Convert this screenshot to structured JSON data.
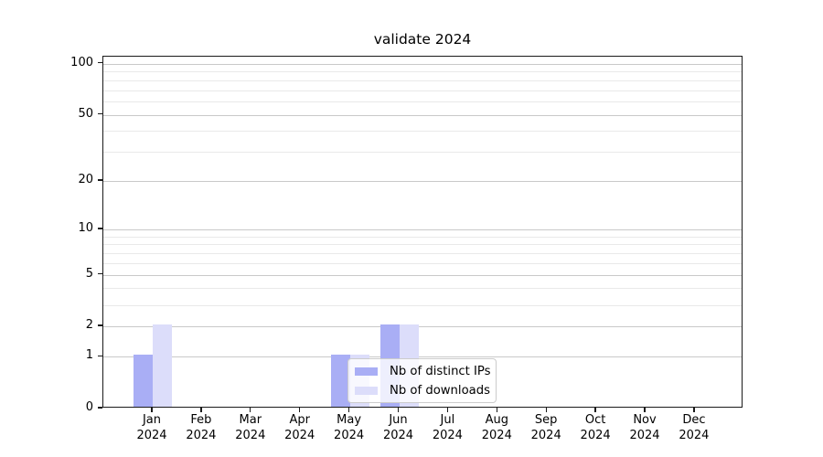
{
  "title": "validate 2024",
  "legend": {
    "items": [
      {
        "label": "Nb of distinct IPs",
        "color": "#a9aef5"
      },
      {
        "label": "Nb of downloads",
        "color": "#dcddfa"
      }
    ]
  },
  "chart_data": {
    "type": "bar",
    "title": "validate 2024",
    "categories": [
      "Jan",
      "Feb",
      "Mar",
      "Apr",
      "May",
      "Jun",
      "Jul",
      "Aug",
      "Sep",
      "Oct",
      "Nov",
      "Dec"
    ],
    "x_year_label": "2024",
    "series": [
      {
        "name": "Nb of distinct IPs",
        "color": "#a9aef5",
        "values": [
          1,
          0,
          0,
          0,
          1,
          2,
          0,
          0,
          0,
          0,
          0,
          0
        ]
      },
      {
        "name": "Nb of downloads",
        "color": "#dcddfa",
        "values": [
          2,
          0,
          0,
          0,
          1,
          2,
          0,
          0,
          0,
          0,
          0,
          0
        ]
      }
    ],
    "xlabel": "",
    "ylabel": "",
    "y_scale": "log1p",
    "ylim": [
      0,
      110
    ],
    "y_ticks_major": [
      0,
      1,
      2,
      5,
      10,
      20,
      50,
      100
    ],
    "y_ticks_minor": [
      3,
      4,
      6,
      7,
      8,
      9,
      30,
      40,
      60,
      70,
      80,
      90
    ],
    "grid": "horizontal",
    "grid_major_color": "#c9c9c9",
    "grid_minor_color": "#e9e9e9",
    "legend_position": "lower center-right, inside plot",
    "bar_layout": "paired bars per month, series1 left of tick, series2 right of tick"
  }
}
